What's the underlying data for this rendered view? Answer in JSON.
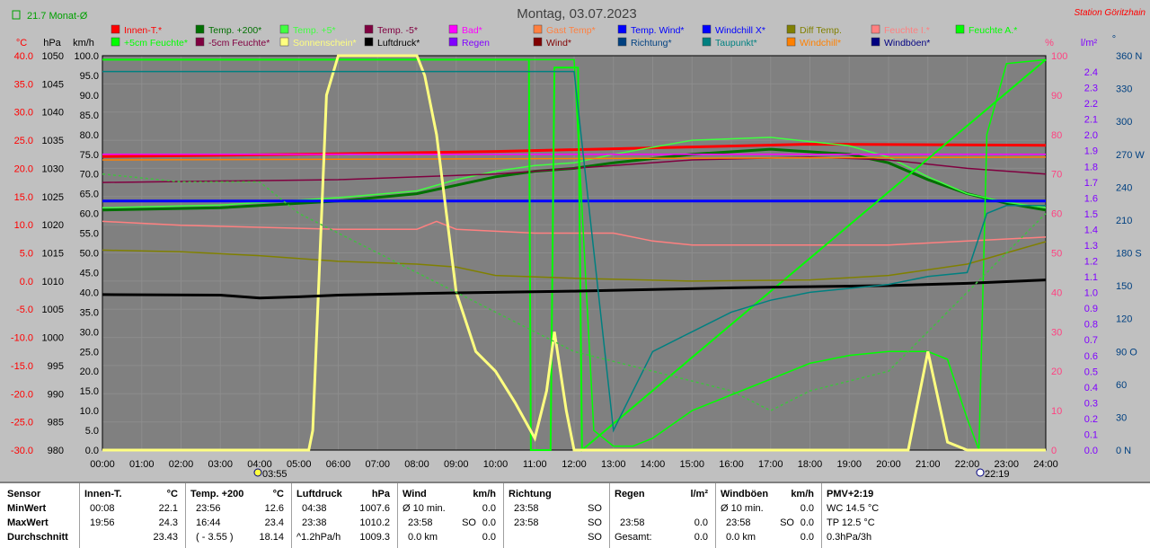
{
  "title": "Montag, 03.07.2023",
  "station": "Station Göritzhain",
  "month_avg": "21.7 Monat-Ø",
  "left_units": {
    "c": "°C",
    "hpa": "hPa",
    "kmh": "km/h"
  },
  "right_units": {
    "pct": "%",
    "lm2": "l/m²",
    "deg": "°"
  },
  "legend": [
    [
      {
        "label": "Innen-T.*",
        "color": "#ff0000"
      },
      {
        "label": "Temp. +200*",
        "color": "#007000"
      },
      {
        "label": "Temp. +5*",
        "color": "#40ff40"
      },
      {
        "label": "Temp. -5*",
        "color": "#800040"
      },
      {
        "label": "Bad*",
        "color": "#ff00ff"
      },
      {
        "label": "Gast Temp*",
        "color": "#ff8040"
      },
      {
        "label": "Temp. Wind*",
        "color": "#0000ff"
      },
      {
        "label": "Windchill X*",
        "color": "#0000ff"
      },
      {
        "label": "Diff Temp.",
        "color": "#808000"
      },
      {
        "label": "Feuchte I.*",
        "color": "#ff8080"
      },
      {
        "label": "Feuchte A.*",
        "color": "#00ff00"
      }
    ],
    [
      {
        "label": "+5cm Feuchte*",
        "color": "#00ff00"
      },
      {
        "label": "-5cm Feuchte*",
        "color": "#800040"
      },
      {
        "label": "Sonnenschein*",
        "color": "#ffff80"
      },
      {
        "label": "Luftdruck*",
        "color": "#000000"
      },
      {
        "label": "Regen",
        "color": "#8000ff"
      },
      {
        "label": "Wind*",
        "color": "#800000"
      },
      {
        "label": "Richtung*",
        "color": "#004080"
      },
      {
        "label": "Taupunkt*",
        "color": "#008080"
      },
      {
        "label": "Windchill*",
        "color": "#ff8000"
      },
      {
        "label": "Windböen*",
        "color": "#000080"
      }
    ]
  ],
  "axis_temp": [
    "40.0",
    "35.0",
    "30.0",
    "25.0",
    "20.0",
    "15.0",
    "10.0",
    "5.0",
    "0.0",
    "-5.0",
    "-10.0",
    "-15.0",
    "-20.0",
    "-25.0",
    "-30.0"
  ],
  "axis_hpa": [
    "1050",
    "1045",
    "1040",
    "1035",
    "1030",
    "1025",
    "1020",
    "1015",
    "1010",
    "1005",
    "1000",
    "995",
    "990",
    "985",
    "980"
  ],
  "axis_kmh": [
    "100.0",
    "95.0",
    "90.0",
    "85.0",
    "80.0",
    "75.0",
    "70.0",
    "65.0",
    "60.0",
    "55.0",
    "50.0",
    "45.0",
    "40.0",
    "35.0",
    "30.0",
    "25.0",
    "20.0",
    "15.0",
    "10.0",
    "5.0",
    "0.0"
  ],
  "axis_pct": [
    "100",
    "90",
    "80",
    "70",
    "60",
    "50",
    "40",
    "30",
    "20",
    "10",
    "0"
  ],
  "axis_rain": [
    "2.4",
    "2.3",
    "2.2",
    "2.1",
    "2.0",
    "1.9",
    "1.8",
    "1.7",
    "1.6",
    "1.5",
    "1.4",
    "1.3",
    "1.2",
    "1.1",
    "1.0",
    "0.9",
    "0.8",
    "0.7",
    "0.6",
    "0.5",
    "0.4",
    "0.3",
    "0.2",
    "0.1",
    "0.0"
  ],
  "axis_dir": [
    "360 N",
    "330",
    "300",
    "270 W",
    "240",
    "210",
    "180 S",
    "150",
    "120",
    "90 O",
    "60",
    "30",
    "0 N"
  ],
  "x_ticks": [
    "00:00",
    "01:00",
    "02:00",
    "03:00",
    "04:00",
    "05:00",
    "06:00",
    "07:00",
    "08:00",
    "09:00",
    "10:00",
    "11:00",
    "12:00",
    "13:00",
    "14:00",
    "15:00",
    "16:00",
    "17:00",
    "18:00",
    "19:00",
    "20:00",
    "21:00",
    "22:00",
    "23:00",
    "24:00"
  ],
  "sunrise": "03:55",
  "sunset": "22:19",
  "chart_data": {
    "type": "line",
    "x_unit": "hours",
    "ylim_temp": [
      -30,
      40
    ],
    "ylim_hpa": [
      980,
      1050
    ],
    "ylim_kmh": [
      0,
      100
    ],
    "ylim_pct": [
      0,
      100
    ],
    "series": [
      {
        "name": "Innen-T.*",
        "axis": "temp",
        "color": "#ff0000",
        "x": [
          0,
          5,
          10,
          15,
          18,
          24
        ],
        "y": [
          22.1,
          22.5,
          23.0,
          23.8,
          24.3,
          24.1
        ]
      },
      {
        "name": "Temp. +200*",
        "axis": "temp",
        "color": "#007000",
        "x": [
          0,
          3,
          6,
          8,
          9,
          10,
          11,
          12,
          13,
          15,
          17,
          19,
          20,
          21,
          22,
          23,
          24
        ],
        "y": [
          12.6,
          13.0,
          14.2,
          15.5,
          17.0,
          18.5,
          19.5,
          20.0,
          21.0,
          22.5,
          23.4,
          22.5,
          21.0,
          18.0,
          15.5,
          13.8,
          12.6
        ]
      },
      {
        "name": "Temp. +5*",
        "axis": "temp",
        "color": "#40ff40",
        "x": [
          0,
          3,
          6,
          8,
          9,
          10,
          11,
          12,
          13,
          15,
          17,
          19,
          20,
          21,
          22,
          23,
          24
        ],
        "y": [
          13.0,
          13.5,
          14.8,
          16.0,
          18.0,
          19.5,
          20.5,
          21.0,
          22.5,
          25.0,
          25.5,
          24.0,
          22.0,
          18.5,
          15.5,
          14.0,
          13.0
        ]
      },
      {
        "name": "Temp. -5*",
        "axis": "temp",
        "color": "#800040",
        "x": [
          0,
          6,
          10,
          12,
          15,
          18,
          20,
          22,
          24
        ],
        "y": [
          17.5,
          18.0,
          19.0,
          20.0,
          21.5,
          22.0,
          21.5,
          20.0,
          19.0
        ]
      },
      {
        "name": "Bad*",
        "axis": "temp",
        "color": "#ff00ff",
        "x": [
          0,
          24
        ],
        "y": [
          22.5,
          22.5
        ]
      },
      {
        "name": "Temp. Wind*",
        "axis": "temp",
        "color": "#0000ff",
        "x": [
          0,
          24
        ],
        "y": [
          14.2,
          14.2
        ]
      },
      {
        "name": "Windchill*",
        "axis": "temp",
        "color": "#ff8000",
        "x": [
          0,
          24
        ],
        "y": [
          21.5,
          22.0
        ]
      },
      {
        "name": "Feuchte I.*",
        "axis": "pct",
        "color": "#ff8080",
        "x": [
          0,
          2,
          6,
          8,
          8.5,
          9,
          11,
          13,
          14,
          15,
          18,
          20,
          22,
          24
        ],
        "y": [
          58,
          57,
          56,
          56,
          58,
          56,
          55,
          55,
          53,
          52,
          52,
          52,
          53,
          54
        ]
      },
      {
        "name": "Feuchte A.*",
        "axis": "pct",
        "color": "#00ff00",
        "x": [
          0,
          10.85,
          10.9,
          11.4,
          11.5,
          12.1,
          12.2,
          24
        ],
        "y": [
          99,
          99,
          0,
          0,
          97,
          97,
          0,
          99
        ]
      },
      {
        "name": "+5cm Feuchte*",
        "axis": "pct",
        "color": "#00ff00",
        "x": [
          0,
          12,
          12.5,
          13,
          13.5,
          14,
          15,
          16,
          17,
          18,
          19,
          20,
          21,
          21.5,
          22,
          22.3,
          22.5,
          23,
          24
        ],
        "y": [
          99,
          99,
          5,
          1,
          1,
          3,
          10,
          14,
          18,
          22,
          24,
          25,
          25,
          23,
          8,
          0,
          80,
          98,
          99
        ]
      },
      {
        "name": "Diff Temp.",
        "axis": "temp",
        "color": "#808000",
        "x": [
          0,
          2,
          4,
          6,
          8,
          9,
          10,
          12,
          15,
          18,
          20,
          22,
          24
        ],
        "y": [
          5.5,
          5.2,
          4.5,
          3.5,
          3.0,
          2.5,
          1.0,
          0.5,
          0.0,
          0.2,
          1.0,
          3.0,
          7.0
        ]
      },
      {
        "name": "Sonnenschein*",
        "axis": "kmh",
        "color": "#ffff80",
        "x": [
          0,
          5.25,
          5.35,
          5.7,
          6,
          7,
          8,
          8.2,
          8.5,
          9,
          9.5,
          10,
          10.5,
          11,
          11.3,
          11.5,
          11.8,
          12,
          13,
          20.5,
          21,
          21.5,
          22,
          24
        ],
        "y": [
          0,
          0,
          5,
          90,
          100,
          100,
          100,
          95,
          80,
          40,
          25,
          20,
          12,
          3,
          15,
          30,
          10,
          0,
          0,
          0,
          25,
          2,
          0,
          0
        ]
      },
      {
        "name": "Luftdruck*",
        "axis": "hpa",
        "color": "#000000",
        "x": [
          0,
          3,
          4,
          5,
          6,
          8,
          10,
          12,
          14,
          16,
          18,
          20,
          22,
          24
        ],
        "y": [
          1007.6,
          1007.5,
          1007.0,
          1007.2,
          1007.5,
          1007.8,
          1008.0,
          1008.2,
          1008.5,
          1008.8,
          1009.0,
          1009.2,
          1009.6,
          1010.2
        ]
      },
      {
        "name": "Taupunkt*",
        "axis": "pct",
        "color": "#008080",
        "x": [
          0,
          12,
          13,
          13.5,
          14,
          15,
          16,
          17,
          18,
          19,
          20,
          21,
          22,
          22.5,
          23,
          24
        ],
        "y": [
          96,
          96,
          5,
          15,
          25,
          30,
          35,
          38,
          40,
          41,
          42,
          44,
          45,
          60,
          62,
          62
        ]
      },
      {
        "name": "-5cm Feuchte*",
        "axis": "pct",
        "color": "#40c040",
        "x": [
          0,
          2,
          4,
          5,
          6,
          8,
          10,
          12,
          14,
          16,
          17,
          18,
          20,
          22,
          24
        ],
        "y": [
          70,
          68,
          68,
          60,
          55,
          45,
          35,
          25,
          20,
          15,
          10,
          15,
          20,
          40,
          60
        ]
      }
    ]
  },
  "table": {
    "sensor": {
      "title": "Sensor",
      "min": "MinWert",
      "max": "MaxWert",
      "avg": "Durchschnitt"
    },
    "innen": {
      "title": "Innen-T.",
      "unit": "°C",
      "min_t": "00:08",
      "min_v": "22.1",
      "max_t": "19:56",
      "max_v": "24.3",
      "avg_v": "23.43"
    },
    "temp200": {
      "title": "Temp. +200",
      "unit": "°C",
      "min_t": "23:56",
      "min_v": "12.6",
      "max_t": "16:44",
      "max_v": "23.4",
      "avg_t": "( - 3.55 )",
      "avg_v": "18.14"
    },
    "luftdruck": {
      "title": "Luftdruck",
      "unit": "hPa",
      "min_t": "04:38",
      "min_v": "1007.6",
      "max_t": "23:38",
      "max_v": "1010.2",
      "avg_t": "^1.2hPa/h",
      "avg_v": "1009.3"
    },
    "wind": {
      "title": "Wind",
      "unit": "km/h",
      "min_t": "Ø 10 min.",
      "min_v": "0.0",
      "max_t": "23:58",
      "max_d": "SO",
      "max_v": "0.0",
      "avg_t": "0.0 km",
      "avg_v": "0.0"
    },
    "richtung": {
      "title": "Richtung",
      "min_t": "23:58",
      "min_v": "SO",
      "max_t": "23:58",
      "max_v": "SO",
      "avg_v": "SO"
    },
    "regen": {
      "title": "Regen",
      "unit": "l/m²",
      "max_t": "23:58",
      "max_v": "0.0",
      "avg_t": "Gesamt:",
      "avg_v": "0.0"
    },
    "boeen": {
      "title": "Windböen",
      "unit": "km/h",
      "min_t": "Ø 10 min.",
      "min_v": "0.0",
      "max_t": "23:58",
      "max_d": "SO",
      "max_v": "0.0",
      "avg_t": "0.0 km",
      "avg_v": "0.0"
    },
    "pmv": {
      "title": "PMV+2:19",
      "min": "WC 14.5 °C",
      "max": "TP 12.5 °C",
      "avg": "0.3hPa/3h"
    }
  }
}
